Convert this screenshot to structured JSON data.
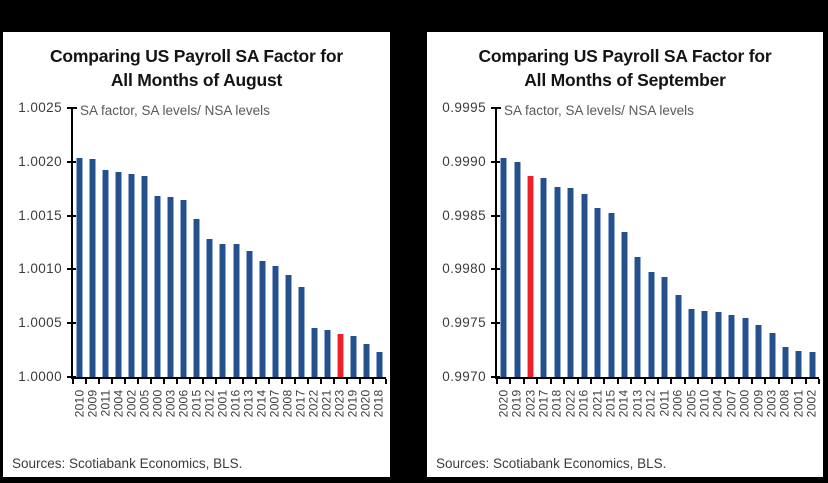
{
  "frame": {
    "background": "#000000",
    "panel_background": "#ffffff"
  },
  "colors": {
    "bar": "#24508c",
    "bar_edge": "#93abd0",
    "highlight": "#ee2129",
    "highlight_edge": "#f7a0a4",
    "axis": "#000000",
    "title_text": "#141414",
    "tick_label_text": "#3c3c3c",
    "annotation_text": "#595959",
    "source_text": "#3c3c3c"
  },
  "chart_data": [
    {
      "type": "bar",
      "title_line1": "Comparing US Payroll SA Factor for",
      "title_line2": "All Months of August",
      "annotation": "SA factor, SA levels/ NSA levels",
      "source": "Sources: Scotiabank Economics, BLS.",
      "ylabel": "SA factor, SA levels/ NSA levels",
      "ylim": [
        1.0,
        1.0025
      ],
      "yticks": [
        "1.0000",
        "1.0005",
        "1.0010",
        "1.0015",
        "1.0020",
        "1.0025"
      ],
      "grid": false,
      "legend": "none",
      "highlight_category": "2023",
      "categories": [
        "2010",
        "2009",
        "2011",
        "2004",
        "2002",
        "2005",
        "2000",
        "2003",
        "2006",
        "2015",
        "2012",
        "2001",
        "2016",
        "2013",
        "2014",
        "2007",
        "2008",
        "2017",
        "2022",
        "2021",
        "2023",
        "2019",
        "2020",
        "2018"
      ],
      "values": [
        1.00204,
        1.00203,
        1.00192,
        1.00191,
        1.00189,
        1.00187,
        1.00168,
        1.00167,
        1.00165,
        1.00147,
        1.00128,
        1.00124,
        1.00124,
        1.00117,
        1.00108,
        1.00103,
        1.00095,
        1.00084,
        1.00046,
        1.00044,
        1.0004,
        1.00038,
        1.00031,
        1.00023
      ]
    },
    {
      "type": "bar",
      "title_line1": "Comparing US Payroll SA Factor for",
      "title_line2": "All Months of September",
      "annotation": "SA factor, SA levels/ NSA levels",
      "source": "Sources: Scotiabank Economics, BLS.",
      "ylabel": "SA factor, SA levels/ NSA levels",
      "ylim": [
        0.997,
        0.9995
      ],
      "yticks": [
        "0.9970",
        "0.9975",
        "0.9980",
        "0.9985",
        "0.9990",
        "0.9995"
      ],
      "grid": false,
      "legend": "none",
      "highlight_category": "2023",
      "categories": [
        "2020",
        "2019",
        "2023",
        "2017",
        "2018",
        "2022",
        "2016",
        "2021",
        "2015",
        "2014",
        "2013",
        "2012",
        "2011",
        "2006",
        "2005",
        "2010",
        "2004",
        "2007",
        "2000",
        "2009",
        "2003",
        "2008",
        "2001",
        "2002"
      ],
      "values": [
        0.99904,
        0.999,
        0.99887,
        0.99885,
        0.99877,
        0.99876,
        0.9987,
        0.99857,
        0.99852,
        0.99835,
        0.99812,
        0.99798,
        0.99793,
        0.99776,
        0.99763,
        0.99761,
        0.9976,
        0.99758,
        0.99755,
        0.99748,
        0.99741,
        0.99728,
        0.99724,
        0.99723
      ]
    }
  ]
}
